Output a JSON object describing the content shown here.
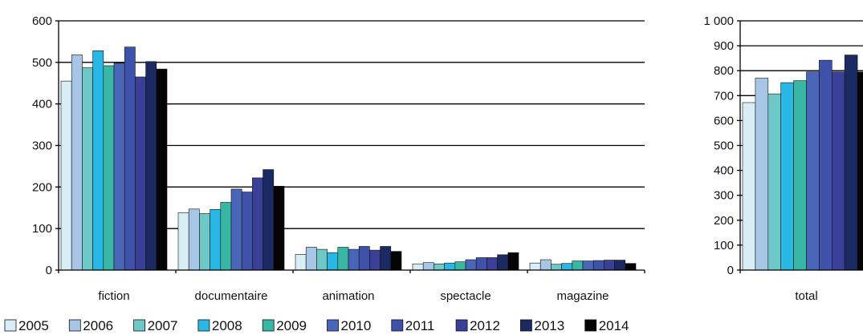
{
  "chart_data": [
    {
      "type": "bar",
      "categories": [
        "fiction",
        "documentaire",
        "animation",
        "spectacle",
        "magazine"
      ],
      "series": [
        {
          "name": "2005",
          "values": [
            455,
            138,
            38,
            15,
            17
          ]
        },
        {
          "name": "2006",
          "values": [
            518,
            147,
            55,
            18,
            25
          ]
        },
        {
          "name": "2007",
          "values": [
            487,
            136,
            50,
            15,
            14
          ]
        },
        {
          "name": "2008",
          "values": [
            528,
            146,
            42,
            17,
            16
          ]
        },
        {
          "name": "2009",
          "values": [
            492,
            163,
            55,
            20,
            22
          ]
        },
        {
          "name": "2010",
          "values": [
            498,
            195,
            50,
            25,
            22
          ]
        },
        {
          "name": "2011",
          "values": [
            537,
            188,
            57,
            30,
            23
          ]
        },
        {
          "name": "2012",
          "values": [
            465,
            222,
            48,
            30,
            24
          ]
        },
        {
          "name": "2013",
          "values": [
            502,
            242,
            57,
            37,
            24
          ]
        },
        {
          "name": "2014",
          "values": [
            484,
            202,
            45,
            42,
            16
          ]
        }
      ],
      "yticks": [
        "0",
        "100",
        "200",
        "300",
        "400",
        "500",
        "600"
      ],
      "ylim": [
        0,
        600
      ],
      "grid": true,
      "legend": "bottom"
    },
    {
      "type": "bar",
      "categories": [
        "total"
      ],
      "series": [
        {
          "name": "2005",
          "values": [
            672
          ]
        },
        {
          "name": "2006",
          "values": [
            770
          ]
        },
        {
          "name": "2007",
          "values": [
            707
          ]
        },
        {
          "name": "2008",
          "values": [
            752
          ]
        },
        {
          "name": "2009",
          "values": [
            760
          ]
        },
        {
          "name": "2010",
          "values": [
            795
          ]
        },
        {
          "name": "2011",
          "values": [
            842
          ]
        },
        {
          "name": "2012",
          "values": [
            795
          ]
        },
        {
          "name": "2013",
          "values": [
            863
          ]
        },
        {
          "name": "2014",
          "values": [
            795
          ]
        }
      ],
      "yticks": [
        "0",
        "100",
        "200",
        "300",
        "400",
        "500",
        "600",
        "700",
        "800",
        "900",
        "1 000"
      ],
      "ylim": [
        0,
        1000
      ],
      "grid": true
    }
  ],
  "colors": [
    "#d7eef6",
    "#a7c5e4",
    "#6fc8c8",
    "#29b7e6",
    "#37b7a4",
    "#4a66b8",
    "#3d52a8",
    "#3a3f98",
    "#1c2a63",
    "#050505"
  ]
}
